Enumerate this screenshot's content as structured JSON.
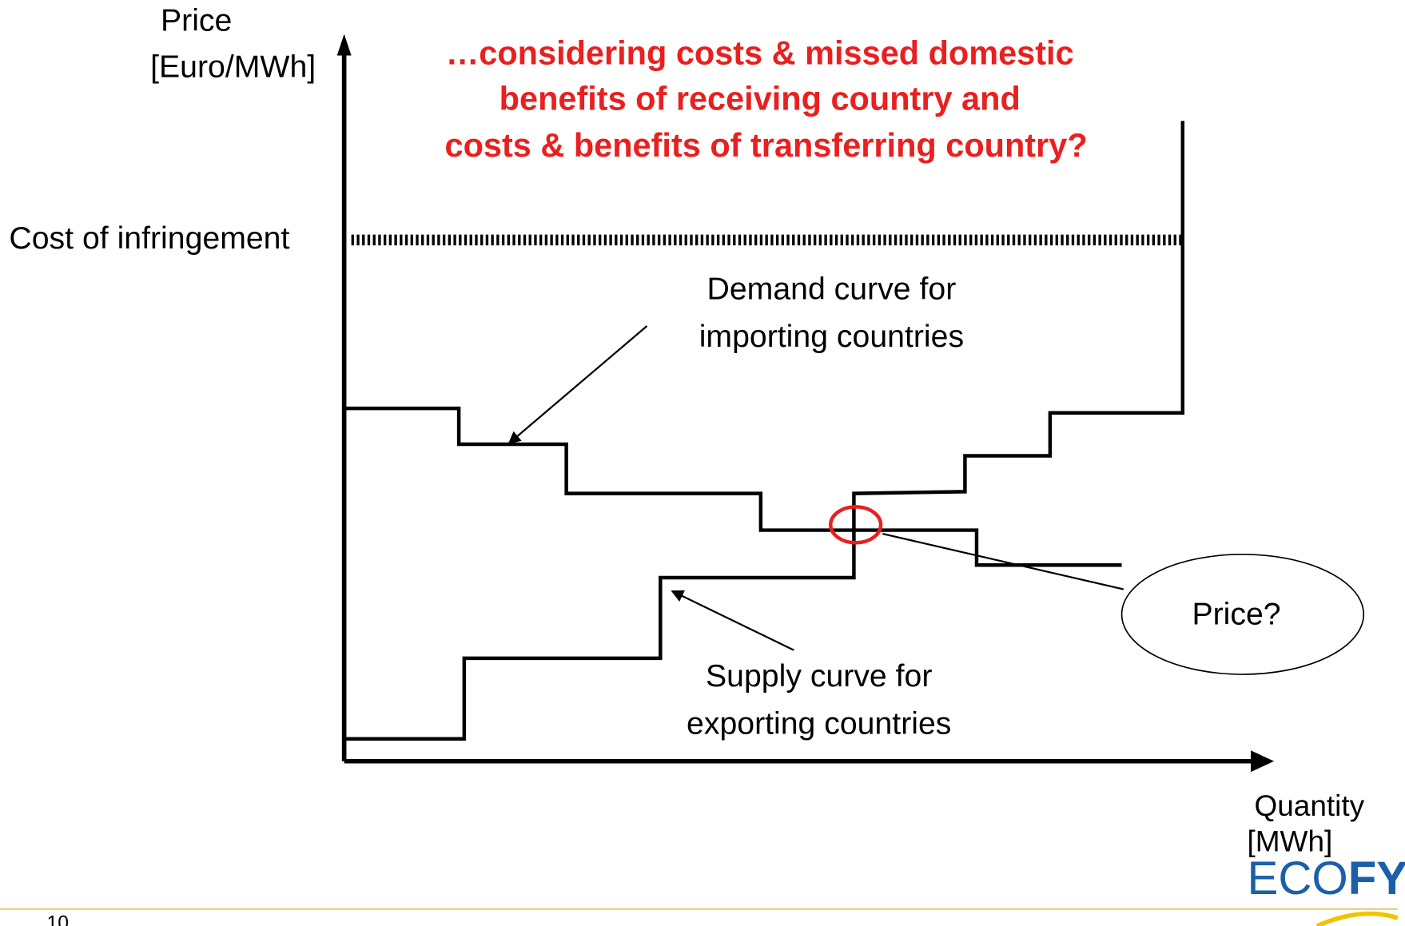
{
  "axes": {
    "y_label": [
      "Price",
      "[Euro/MWh]"
    ],
    "x_label": [
      "Quantity",
      "[MWh]"
    ]
  },
  "title": [
    "…considering costs & missed domestic",
    "benefits of receiving country and",
    "costs & benefits of transferring country?"
  ],
  "annotations": {
    "cost_line": "Cost of infringement",
    "demand": [
      "Demand curve for",
      "importing countries"
    ],
    "supply": [
      "Supply curve for",
      "exporting countries"
    ],
    "price": "Price?"
  },
  "footer": {
    "page": "10",
    "logo": [
      "ECO",
      "FYS"
    ]
  }
}
